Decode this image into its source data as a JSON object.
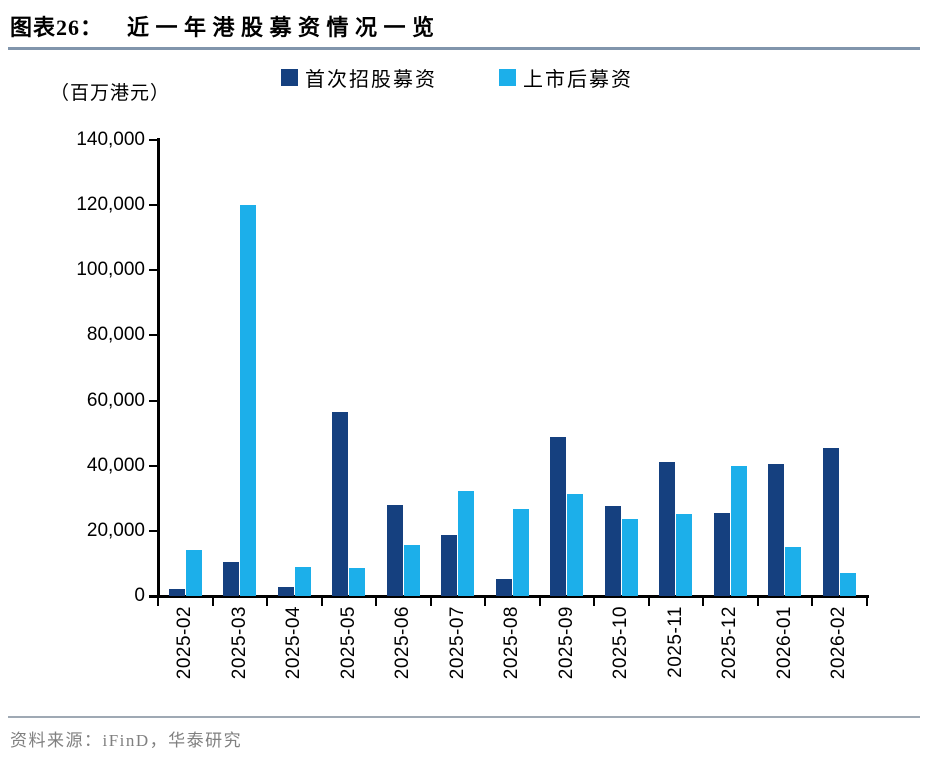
{
  "header": {
    "figure_label": "图表26：",
    "title": "近一年港股募资情况一览"
  },
  "legend": {
    "items": [
      {
        "label": "首次招股募资",
        "color": "#15407f"
      },
      {
        "label": "上市后募资",
        "color": "#1cafea"
      }
    ]
  },
  "axis_unit": "（百万港元）",
  "footer": {
    "source": "资料来源：iFinD，华泰研究"
  },
  "colors": {
    "ipo_series": "#15407f",
    "post_listing_series": "#1cafea",
    "top_rule": "#8195ac",
    "bottom_rule": "#9fa9b4",
    "source_text": "#808080",
    "axis": "#000000"
  },
  "chart_data": {
    "type": "bar",
    "title": "近一年港股募资情况一览",
    "ylabel": "百万港元",
    "xlabel": "",
    "categories": [
      "2025-02",
      "2025-03",
      "2025-04",
      "2025-05",
      "2025-06",
      "2025-07",
      "2025-08",
      "2025-09",
      "2025-10",
      "2025-11",
      "2025-12",
      "2026-01",
      "2026-02"
    ],
    "series": [
      {
        "name": "首次招股募资",
        "color": "#15407f",
        "values": [
          2000,
          10500,
          2800,
          56400,
          27800,
          18600,
          5200,
          48700,
          27500,
          41000,
          25600,
          40500,
          45300
        ]
      },
      {
        "name": "上市后募资",
        "color": "#1cafea",
        "values": [
          14000,
          120000,
          9000,
          8700,
          15800,
          32300,
          26600,
          31300,
          23600,
          25200,
          40000,
          15100,
          7200
        ]
      }
    ],
    "ylim": [
      0,
      140000
    ],
    "ytick_step": 20000,
    "grid": false,
    "legend_position": "top"
  }
}
